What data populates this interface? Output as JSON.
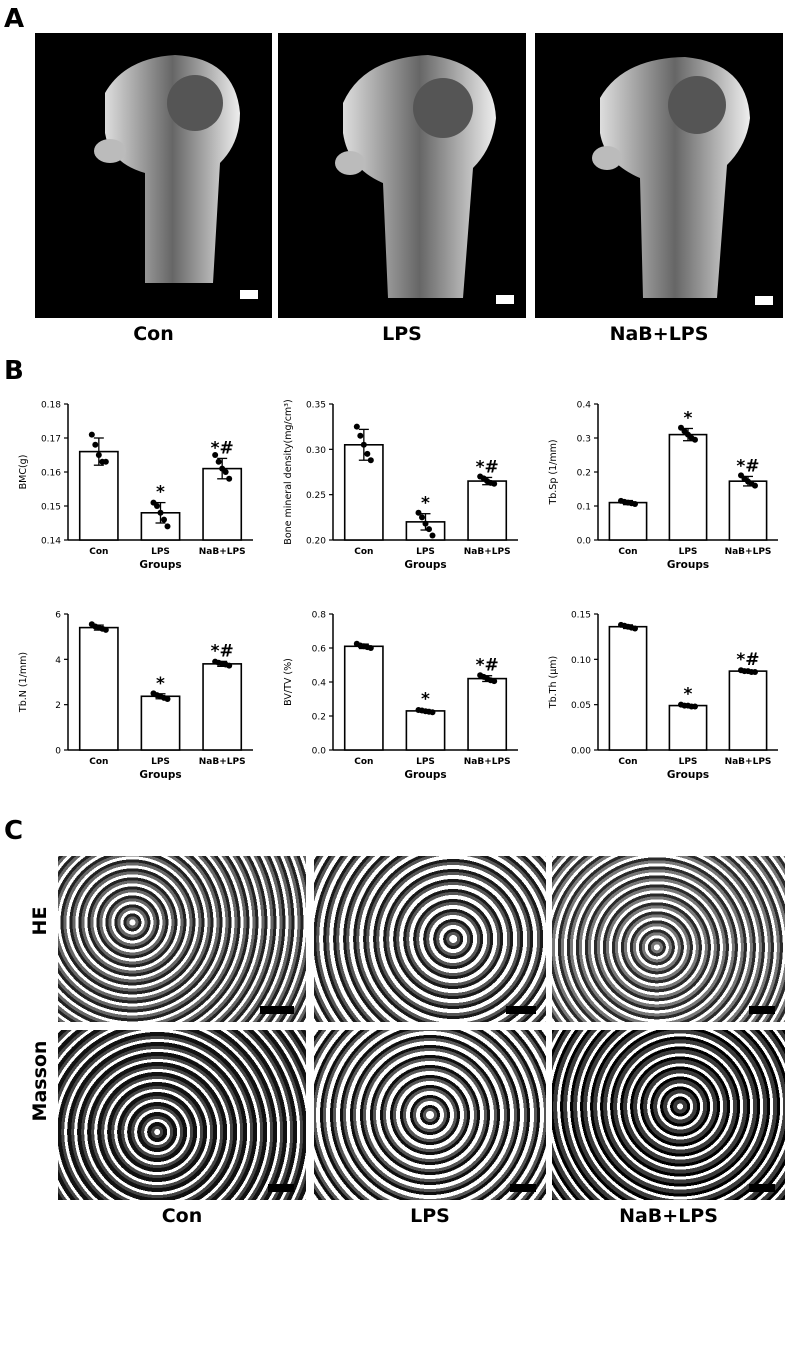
{
  "panels": {
    "a_label": "A",
    "b_label": "B",
    "c_label": "C"
  },
  "panel_a": {
    "captions": [
      "Con",
      "LPS",
      "NaB+LPS"
    ]
  },
  "panel_c": {
    "row_labels": [
      "HE",
      "Masson"
    ],
    "captions": [
      "Con",
      "LPS",
      "NaB+LPS"
    ]
  },
  "chart_data": [
    {
      "type": "bar",
      "categories": [
        "Con",
        "LPS",
        "NaB+LPS"
      ],
      "values": [
        0.166,
        0.148,
        0.161
      ],
      "errors": [
        0.004,
        0.003,
        0.003
      ],
      "points": [
        [
          0.171,
          0.168,
          0.165,
          0.163,
          0.163
        ],
        [
          0.151,
          0.15,
          0.148,
          0.146,
          0.144
        ],
        [
          0.165,
          0.163,
          0.161,
          0.16,
          0.158
        ]
      ],
      "annotations": [
        "",
        "*",
        "*#"
      ],
      "ylabel": "BMC(g)",
      "xlabel": "Groups",
      "ylim": [
        0.14,
        0.18
      ],
      "yticks": [
        "0.14",
        "0.15",
        "0.16",
        "0.17",
        "0.18"
      ]
    },
    {
      "type": "bar",
      "categories": [
        "Con",
        "LPS",
        "NaB+LPS"
      ],
      "values": [
        0.305,
        0.22,
        0.265
      ],
      "errors": [
        0.017,
        0.009,
        0.004
      ],
      "points": [
        [
          0.325,
          0.315,
          0.305,
          0.295,
          0.288
        ],
        [
          0.23,
          0.225,
          0.218,
          0.212,
          0.205
        ],
        [
          0.27,
          0.268,
          0.265,
          0.263,
          0.262
        ]
      ],
      "annotations": [
        "",
        "*",
        "*#"
      ],
      "ylabel": "Bone mineral density(mg/cm³)",
      "xlabel": "Groups",
      "ylim": [
        0.2,
        0.35
      ],
      "yticks": [
        "0.20",
        "0.25",
        "0.30",
        "0.35"
      ]
    },
    {
      "type": "bar",
      "categories": [
        "Con",
        "LPS",
        "NaB+LPS"
      ],
      "values": [
        0.11,
        0.31,
        0.173
      ],
      "errors": [
        0.006,
        0.018,
        0.014
      ],
      "points": [
        [
          0.115,
          0.112,
          0.11,
          0.108,
          0.106
        ],
        [
          0.33,
          0.32,
          0.31,
          0.3,
          0.295
        ],
        [
          0.19,
          0.18,
          0.172,
          0.166,
          0.16
        ]
      ],
      "annotations": [
        "",
        "*",
        "*#"
      ],
      "ylabel": "Tb.Sp (1/mm)",
      "xlabel": "Groups",
      "ylim": [
        0,
        0.4
      ],
      "yticks": [
        "0.0",
        "0.1",
        "0.2",
        "0.3",
        "0.4"
      ]
    },
    {
      "type": "bar",
      "categories": [
        "Con",
        "LPS",
        "NaB+LPS"
      ],
      "values": [
        5.4,
        2.37,
        3.8
      ],
      "errors": [
        0.11,
        0.11,
        0.11
      ],
      "points": [
        [
          5.55,
          5.45,
          5.4,
          5.35,
          5.3
        ],
        [
          2.5,
          2.42,
          2.36,
          2.3,
          2.25
        ],
        [
          3.9,
          3.85,
          3.8,
          3.77,
          3.72
        ]
      ],
      "annotations": [
        "",
        "*",
        "*#"
      ],
      "ylabel": "Tb.N (1/mm)",
      "xlabel": "Groups",
      "ylim": [
        0,
        6
      ],
      "yticks": [
        "0",
        "2",
        "4",
        "6"
      ]
    },
    {
      "type": "bar",
      "categories": [
        "Con",
        "LPS",
        "NaB+LPS"
      ],
      "values": [
        0.61,
        0.23,
        0.42
      ],
      "errors": [
        0.013,
        0.008,
        0.017
      ],
      "points": [
        [
          0.625,
          0.615,
          0.61,
          0.605,
          0.6
        ],
        [
          0.235,
          0.232,
          0.228,
          0.225,
          0.222
        ],
        [
          0.44,
          0.43,
          0.42,
          0.41,
          0.405
        ]
      ],
      "annotations": [
        "",
        "*",
        "*#"
      ],
      "ylabel": "BV/TV (%)",
      "xlabel": "Groups",
      "ylim": [
        0,
        0.8
      ],
      "yticks": [
        "0.0",
        "0.2",
        "0.4",
        "0.6",
        "0.8"
      ]
    },
    {
      "type": "bar",
      "categories": [
        "Con",
        "LPS",
        "NaB+LPS"
      ],
      "values": [
        0.136,
        0.049,
        0.087
      ],
      "errors": [
        0.002,
        0.001,
        0.001
      ],
      "points": [
        [
          0.138,
          0.137,
          0.136,
          0.135,
          0.134
        ],
        [
          0.05,
          0.049,
          0.049,
          0.048,
          0.048
        ],
        [
          0.088,
          0.087,
          0.087,
          0.086,
          0.086
        ]
      ],
      "annotations": [
        "",
        "*",
        "*#"
      ],
      "ylabel": "Tb.Th (μm)",
      "xlabel": "Groups",
      "ylim": [
        0,
        0.15
      ],
      "yticks": [
        "0.00",
        "0.05",
        "0.10",
        "0.15"
      ]
    }
  ]
}
